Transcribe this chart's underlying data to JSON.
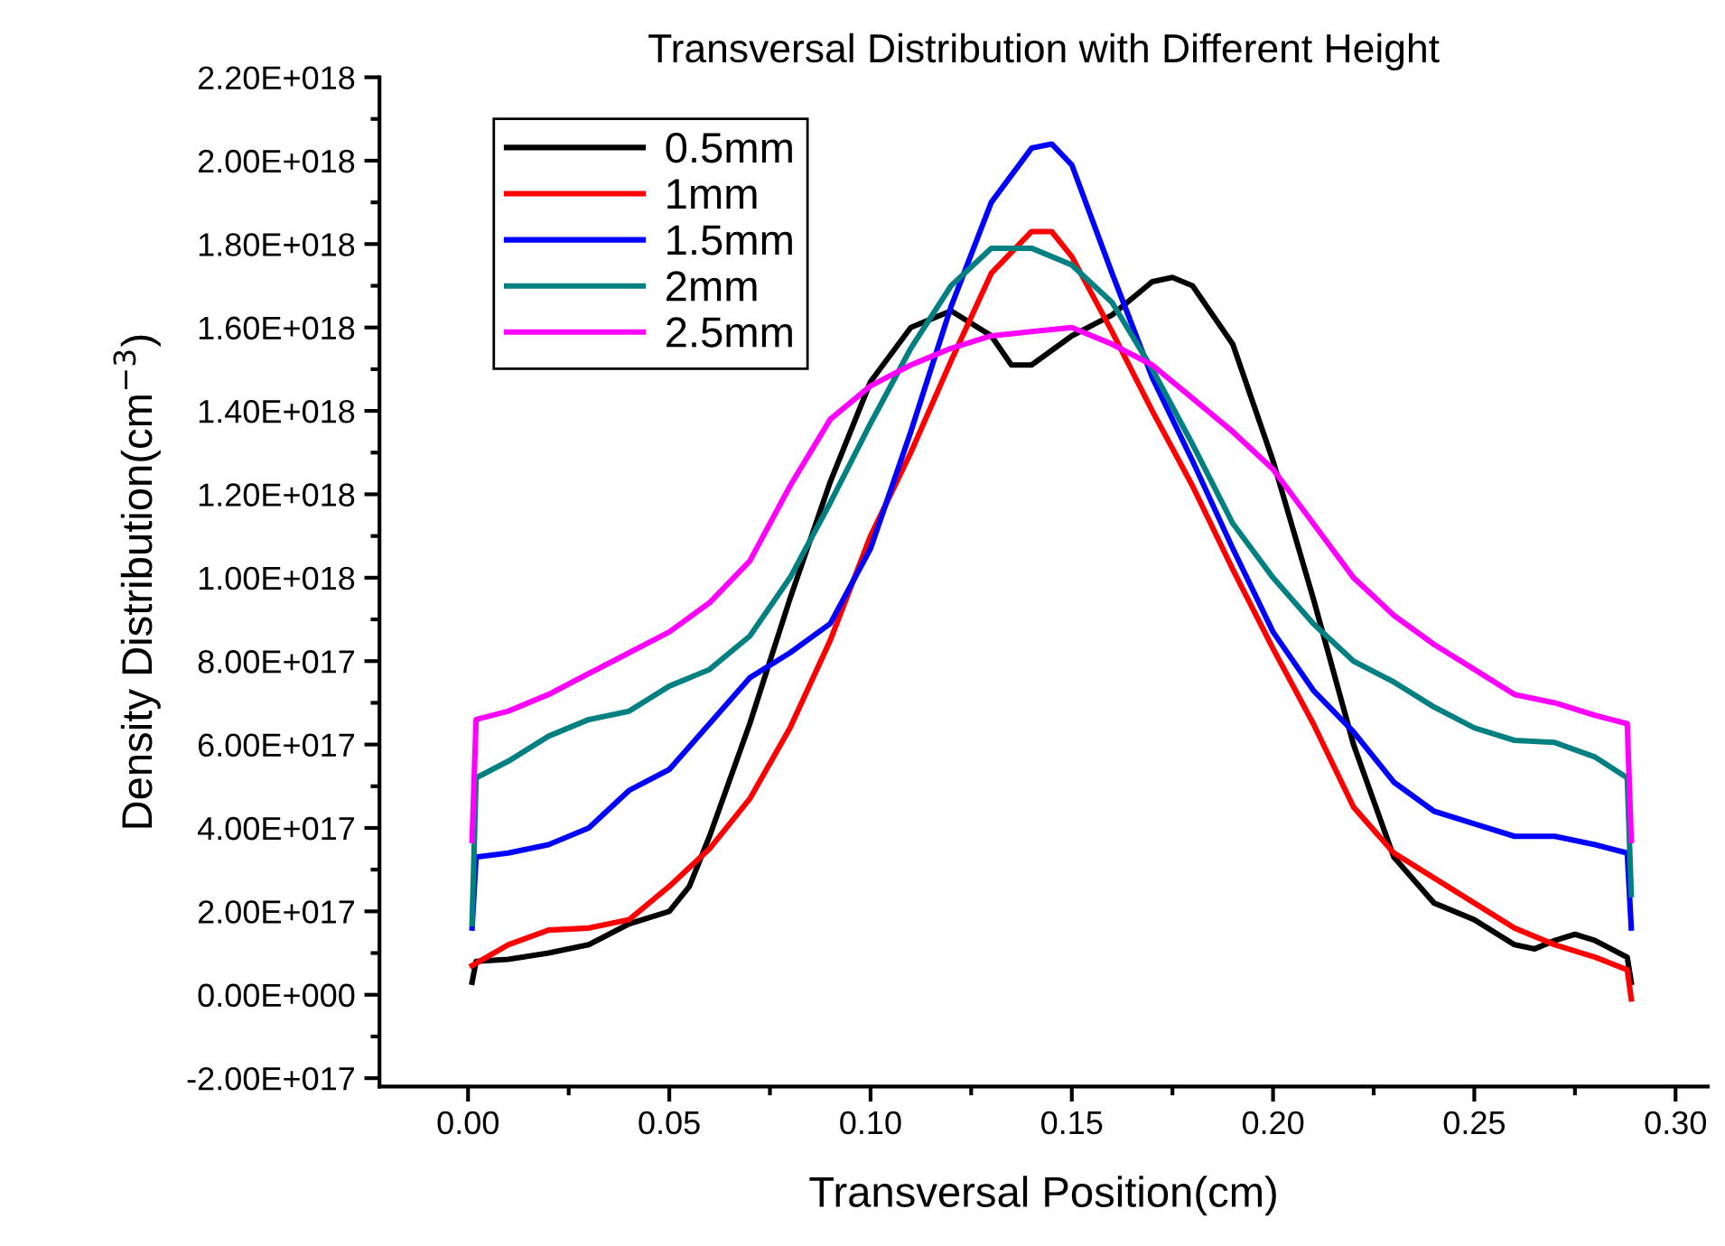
{
  "chart_data": {
    "type": "line",
    "title": "Transversal Distribution with Different Height",
    "xlabel": "Transversal Position(cm)",
    "ylabel": "Density Distribution(cm$^{−3}$)",
    "xlim": [
      -0.022,
      0.308
    ],
    "ylim": [
      -2.2e+17,
      2.2e+18
    ],
    "xticks": [
      {
        "value": 0.0,
        "label": "0.00"
      },
      {
        "value": 0.05,
        "label": "0.05"
      },
      {
        "value": 0.1,
        "label": "0.10"
      },
      {
        "value": 0.15,
        "label": "0.15"
      },
      {
        "value": 0.2,
        "label": "0.20"
      },
      {
        "value": 0.25,
        "label": "0.25"
      },
      {
        "value": 0.3,
        "label": "0.30"
      }
    ],
    "yticks": [
      {
        "value": -2e+17,
        "label": "-2.00E+017"
      },
      {
        "value": 0,
        "label": "0.00E+000"
      },
      {
        "value": 2e+17,
        "label": "2.00E+017"
      },
      {
        "value": 4e+17,
        "label": "4.00E+017"
      },
      {
        "value": 6e+17,
        "label": "6.00E+017"
      },
      {
        "value": 8e+17,
        "label": "8.00E+017"
      },
      {
        "value": 1e+18,
        "label": "1.00E+018"
      },
      {
        "value": 1.2e+18,
        "label": "1.20E+018"
      },
      {
        "value": 1.4e+18,
        "label": "1.40E+018"
      },
      {
        "value": 1.6e+18,
        "label": "1.60E+018"
      },
      {
        "value": 1.8e+18,
        "label": "1.80E+018"
      },
      {
        "value": 2e+18,
        "label": "2.00E+018"
      },
      {
        "value": 2.2e+18,
        "label": "2.20E+018"
      }
    ],
    "grid": false,
    "legend": "top left",
    "line_style": "solid",
    "series": [
      {
        "name": "0.5mm",
        "color": "#000000",
        "x": [
          0.001,
          0.002,
          0.01,
          0.02,
          0.03,
          0.04,
          0.05,
          0.055,
          0.06,
          0.07,
          0.08,
          0.09,
          0.1,
          0.11,
          0.12,
          0.13,
          0.135,
          0.14,
          0.15,
          0.16,
          0.17,
          0.175,
          0.18,
          0.19,
          0.2,
          0.21,
          0.22,
          0.23,
          0.24,
          0.25,
          0.26,
          0.265,
          0.27,
          0.275,
          0.28,
          0.288,
          0.289
        ],
        "values": [
          3e+16,
          8e+16,
          8.5e+16,
          1e+17,
          1.2e+17,
          1.7e+17,
          2e+17,
          2.6e+17,
          3.8e+17,
          6.5e+17,
          9.5e+17,
          1.23e+18,
          1.47e+18,
          1.6e+18,
          1.64e+18,
          1.58e+18,
          1.51e+18,
          1.51e+18,
          1.58e+18,
          1.63e+18,
          1.71e+18,
          1.72e+18,
          1.7e+18,
          1.56e+18,
          1.28e+18,
          9.5e+17,
          6e+17,
          3.3e+17,
          2.2e+17,
          1.8e+17,
          1.2e+17,
          1.1e+17,
          1.3e+17,
          1.45e+17,
          1.3e+17,
          9e+16,
          3e+16
        ]
      },
      {
        "name": "1mm",
        "color": "#ff0000",
        "x": [
          0.001,
          0.01,
          0.02,
          0.03,
          0.04,
          0.05,
          0.06,
          0.07,
          0.08,
          0.09,
          0.1,
          0.11,
          0.12,
          0.13,
          0.14,
          0.145,
          0.15,
          0.16,
          0.17,
          0.18,
          0.19,
          0.2,
          0.21,
          0.22,
          0.23,
          0.24,
          0.25,
          0.26,
          0.27,
          0.28,
          0.288,
          0.289
        ],
        "values": [
          7e+16,
          1.2e+17,
          1.55e+17,
          1.6e+17,
          1.8e+17,
          2.6e+17,
          3.5e+17,
          4.7e+17,
          6.4e+17,
          8.5e+17,
          1.1e+18,
          1.3e+18,
          1.52e+18,
          1.73e+18,
          1.83e+18,
          1.83e+18,
          1.77e+18,
          1.59e+18,
          1.4e+18,
          1.22e+18,
          1.02e+18,
          8.3e+17,
          6.5e+17,
          4.5e+17,
          3.4e+17,
          2.8e+17,
          2.2e+17,
          1.6e+17,
          1.2e+17,
          9e+16,
          6e+16,
          -1e+16
        ]
      },
      {
        "name": "1.5mm",
        "color": "#0000ff",
        "x": [
          0.001,
          0.002,
          0.01,
          0.02,
          0.03,
          0.04,
          0.05,
          0.06,
          0.07,
          0.08,
          0.09,
          0.1,
          0.11,
          0.12,
          0.13,
          0.14,
          0.145,
          0.15,
          0.16,
          0.17,
          0.18,
          0.19,
          0.2,
          0.21,
          0.22,
          0.23,
          0.24,
          0.25,
          0.26,
          0.27,
          0.28,
          0.288,
          0.289
        ],
        "values": [
          1.6e+17,
          3.3e+17,
          3.4e+17,
          3.6e+17,
          4e+17,
          4.9e+17,
          5.4e+17,
          6.5e+17,
          7.6e+17,
          8.2e+17,
          8.9e+17,
          1.07e+18,
          1.35e+18,
          1.65e+18,
          1.9e+18,
          2.03e+18,
          2.04e+18,
          1.99e+18,
          1.73e+18,
          1.48e+18,
          1.28e+18,
          1.07e+18,
          8.7e+17,
          7.3e+17,
          6.3e+17,
          5.1e+17,
          4.4e+17,
          4.1e+17,
          3.8e+17,
          3.8e+17,
          3.6e+17,
          3.4e+17,
          1.6e+17
        ]
      },
      {
        "name": "2mm",
        "color": "#008080",
        "x": [
          0.001,
          0.002,
          0.01,
          0.02,
          0.03,
          0.04,
          0.05,
          0.06,
          0.07,
          0.08,
          0.09,
          0.1,
          0.11,
          0.12,
          0.13,
          0.14,
          0.15,
          0.16,
          0.17,
          0.18,
          0.19,
          0.2,
          0.21,
          0.22,
          0.23,
          0.24,
          0.25,
          0.26,
          0.27,
          0.28,
          0.288,
          0.289
        ],
        "values": [
          1.7e+17,
          5.2e+17,
          5.6e+17,
          6.2e+17,
          6.6e+17,
          6.8e+17,
          7.4e+17,
          7.8e+17,
          8.6e+17,
          1e+18,
          1.18e+18,
          1.37e+18,
          1.55e+18,
          1.7e+18,
          1.79e+18,
          1.79e+18,
          1.75e+18,
          1.66e+18,
          1.5e+18,
          1.32e+18,
          1.13e+18,
          1e+18,
          8.9e+17,
          8e+17,
          7.5e+17,
          6.9e+17,
          6.4e+17,
          6.1e+17,
          6.05e+17,
          5.7e+17,
          5.2e+17,
          2.4e+17
        ]
      },
      {
        "name": "2.5mm",
        "color": "#ff00ff",
        "x": [
          0.001,
          0.002,
          0.01,
          0.02,
          0.03,
          0.04,
          0.05,
          0.06,
          0.07,
          0.08,
          0.09,
          0.1,
          0.11,
          0.12,
          0.13,
          0.14,
          0.15,
          0.16,
          0.17,
          0.18,
          0.19,
          0.2,
          0.21,
          0.22,
          0.23,
          0.24,
          0.25,
          0.26,
          0.27,
          0.28,
          0.288,
          0.289
        ],
        "values": [
          3.7e+17,
          6.6e+17,
          6.8e+17,
          7.2e+17,
          7.7e+17,
          8.2e+17,
          8.7e+17,
          9.4e+17,
          1.04e+18,
          1.22e+18,
          1.38e+18,
          1.46e+18,
          1.51e+18,
          1.55e+18,
          1.58e+18,
          1.59e+18,
          1.6e+18,
          1.56e+18,
          1.51e+18,
          1.43e+18,
          1.35e+18,
          1.26e+18,
          1.13e+18,
          1e+18,
          9.1e+17,
          8.4e+17,
          7.8e+17,
          7.2e+17,
          7e+17,
          6.7e+17,
          6.5e+17,
          3.7e+17
        ]
      }
    ]
  }
}
